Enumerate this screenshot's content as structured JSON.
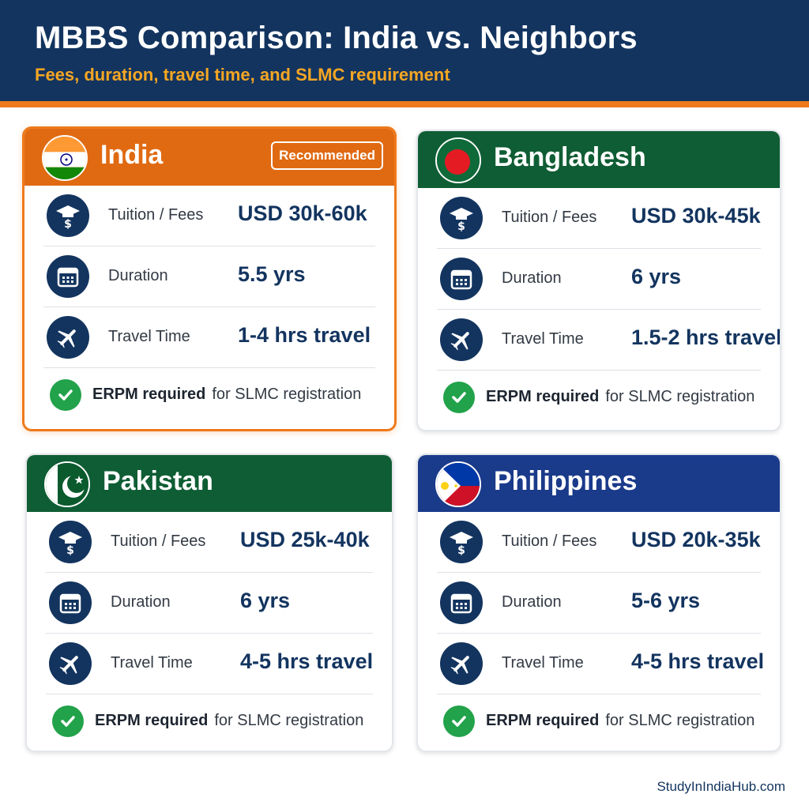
{
  "header": {
    "title": "MBBS Comparison: India vs. Neighbors",
    "subtitle": "Fees, duration, travel time, and SLMC requirement"
  },
  "labels": {
    "tuition": "Tuition / Fees",
    "duration": "Duration",
    "travel": "Travel Time",
    "erpm_strong": "ERPM required",
    "erpm_rest": "for SLMC registration"
  },
  "cards": [
    {
      "country": "India",
      "badge": "Recommended",
      "color": "#e06a12",
      "flag_icon": "india-flag-icon",
      "tuition": "USD 30k-60k",
      "duration": "5.5 yrs",
      "travel": "1-4 hrs travel"
    },
    {
      "country": "Bangladesh",
      "color": "#0f5d34",
      "flag_icon": "bangladesh-flag-icon",
      "tuition": "USD 30k-45k",
      "duration": "6 yrs",
      "travel": "1.5-2 hrs travel"
    },
    {
      "country": "Pakistan",
      "color": "#0f5d34",
      "flag_icon": "pakistan-flag-icon",
      "tuition": "USD 25k-40k",
      "duration": "6 yrs",
      "travel": "4-5 hrs travel"
    },
    {
      "country": "Philippines",
      "color": "#1a3a8a",
      "flag_icon": "philippines-flag-icon",
      "tuition": "USD 20k-35k",
      "duration": "5-6 yrs",
      "travel": "4-5 hrs travel"
    }
  ],
  "icons": [
    "graduation-cap-dollar-icon",
    "calendar-icon",
    "airplane-icon",
    "checkmark-icon"
  ],
  "footer": "StudyInIndiaHub.com"
}
